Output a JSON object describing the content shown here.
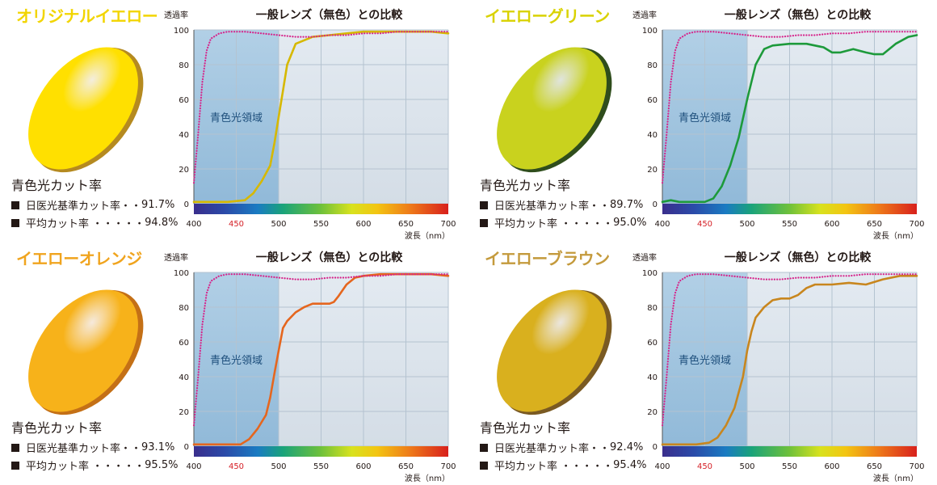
{
  "panels": [
    {
      "id": "original-yellow",
      "title": "オリジナルイエロー",
      "title_color": "#f2d500",
      "lens_color": "#ffe000",
      "lens_edge_color": "#b58a20",
      "cut_heading": "青色光カット率",
      "cut_rows": [
        {
          "label": "日医光基準カット率・・",
          "value": "91.7%"
        },
        {
          "label": "平均カット率 ・・・・・",
          "value": "94.8%"
        }
      ],
      "chart_data": {
        "type": "line",
        "title": "一般レンズ（無色）との比較",
        "ylabel": "透過率",
        "xlabel": "波長（nm）",
        "xlim": [
          400,
          700
        ],
        "ylim": [
          0,
          100
        ],
        "x_ticks": [
          "400",
          "450",
          "500",
          "550",
          "600",
          "650",
          "700"
        ],
        "y_ticks": [
          "0",
          "20",
          "40",
          "60",
          "80",
          "100"
        ],
        "highlight_tick": "450",
        "region_label": "青色光領域",
        "region_range": [
          400,
          500
        ],
        "series": [
          {
            "color": "#d6b800",
            "style": "solid",
            "x": [
              400,
              420,
              440,
              460,
              470,
              480,
              490,
              495,
              500,
              505,
              510,
              520,
              540,
              560,
              580,
              600,
              620,
              650,
              680,
              700
            ],
            "y": [
              1,
              1,
              1,
              2,
              6,
              13,
              22,
              35,
              50,
              65,
              80,
              92,
              96,
              97,
              98,
              99,
              99,
              99,
              99,
              98
            ]
          },
          {
            "color": "#d6248a",
            "style": "dotted",
            "x": [
              400,
              405,
              410,
              415,
              420,
              430,
              440,
              460,
              480,
              500,
              520,
              540,
              560,
              580,
              600,
              620,
              640,
              660,
              680,
              700
            ],
            "y": [
              12,
              40,
              70,
              88,
              95,
              98,
              99,
              99,
              98,
              97,
              96,
              96,
              97,
              97,
              98,
              98,
              99,
              99,
              99,
              99
            ]
          }
        ]
      }
    },
    {
      "id": "yellow-green",
      "title": "イエローグリーン",
      "title_color": "#d9d200",
      "lens_color": "#c9d21e",
      "lens_edge_color": "#2f4d1c",
      "cut_heading": "青色光カット率",
      "cut_rows": [
        {
          "label": "日医光基準カット率・・",
          "value": "89.7%"
        },
        {
          "label": "平均カット率 ・・・・・",
          "value": "95.0%"
        }
      ],
      "chart_data": {
        "type": "line",
        "title": "一般レンズ（無色）との比較",
        "ylabel": "透過率",
        "xlabel": "波長（nm）",
        "xlim": [
          400,
          700
        ],
        "ylim": [
          0,
          100
        ],
        "x_ticks": [
          "400",
          "450",
          "500",
          "550",
          "600",
          "650",
          "700"
        ],
        "y_ticks": [
          "0",
          "20",
          "40",
          "60",
          "80",
          "100"
        ],
        "highlight_tick": "450",
        "region_label": "青色光領域",
        "region_range": [
          400,
          500
        ],
        "series": [
          {
            "color": "#1d9a3b",
            "style": "solid",
            "x": [
              400,
              410,
              420,
              440,
              450,
              460,
              470,
              480,
              490,
              500,
              510,
              520,
              530,
              550,
              570,
              590,
              600,
              610,
              625,
              640,
              650,
              660,
              675,
              690,
              700
            ],
            "y": [
              1,
              2,
              1,
              1,
              1,
              3,
              10,
              22,
              38,
              60,
              80,
              89,
              91,
              92,
              92,
              90,
              87,
              87,
              89,
              87,
              86,
              86,
              92,
              96,
              97
            ]
          },
          {
            "color": "#d6248a",
            "style": "dotted",
            "x": [
              400,
              405,
              410,
              415,
              420,
              430,
              440,
              460,
              480,
              500,
              520,
              540,
              560,
              580,
              600,
              620,
              640,
              660,
              680,
              700
            ],
            "y": [
              12,
              40,
              70,
              88,
              95,
              98,
              99,
              99,
              98,
              97,
              96,
              96,
              97,
              97,
              98,
              98,
              99,
              99,
              99,
              99
            ]
          }
        ]
      }
    },
    {
      "id": "yellow-orange",
      "title": "イエローオレンジ",
      "title_color": "#f0a41e",
      "lens_color": "#f7b21a",
      "lens_edge_color": "#c47016",
      "cut_heading": "青色光カット率",
      "cut_rows": [
        {
          "label": "日医光基準カット率・・",
          "value": "93.1%"
        },
        {
          "label": "平均カット率 ・・・・・",
          "value": "95.5%"
        }
      ],
      "chart_data": {
        "type": "line",
        "title": "一般レンズ（無色）との比較",
        "ylabel": "透過率",
        "xlabel": "波長（nm）",
        "xlim": [
          400,
          700
        ],
        "ylim": [
          0,
          100
        ],
        "x_ticks": [
          "400",
          "450",
          "500",
          "550",
          "600",
          "650",
          "700"
        ],
        "y_ticks": [
          "0",
          "20",
          "40",
          "60",
          "80",
          "100"
        ],
        "highlight_tick": "450",
        "region_label": "青色光領域",
        "region_range": [
          400,
          500
        ],
        "series": [
          {
            "color": "#e5661e",
            "style": "solid",
            "x": [
              400,
              420,
              440,
              455,
              465,
              475,
              485,
              490,
              495,
              500,
              505,
              510,
              520,
              530,
              540,
              550,
              560,
              565,
              570,
              580,
              590,
              600,
              620,
              650,
              680,
              700
            ],
            "y": [
              1,
              1,
              1,
              1,
              4,
              10,
              18,
              28,
              42,
              55,
              68,
              72,
              77,
              80,
              82,
              82,
              82,
              83,
              86,
              93,
              97,
              98,
              99,
              99,
              99,
              98
            ]
          },
          {
            "color": "#d6248a",
            "style": "dotted",
            "x": [
              400,
              405,
              410,
              415,
              420,
              430,
              440,
              460,
              480,
              500,
              520,
              540,
              560,
              580,
              600,
              620,
              640,
              660,
              680,
              700
            ],
            "y": [
              12,
              40,
              70,
              88,
              95,
              98,
              99,
              99,
              98,
              97,
              96,
              96,
              97,
              97,
              98,
              98,
              99,
              99,
              99,
              99
            ]
          }
        ]
      }
    },
    {
      "id": "yellow-brown",
      "title": "イエローブラウン",
      "title_color": "#c49a3c",
      "lens_color": "#d9b01e",
      "lens_edge_color": "#7a5a22",
      "cut_heading": "青色光カット率",
      "cut_rows": [
        {
          "label": "日医光基準カット率・・",
          "value": "92.4%"
        },
        {
          "label": "平均カット率 ・・・・・",
          "value": "95.4%"
        }
      ],
      "chart_data": {
        "type": "line",
        "title": "一般レンズ（無色）との比較",
        "ylabel": "透過率",
        "xlabel": "波長（nm）",
        "xlim": [
          400,
          700
        ],
        "ylim": [
          0,
          100
        ],
        "x_ticks": [
          "400",
          "450",
          "500",
          "550",
          "600",
          "650",
          "700"
        ],
        "y_ticks": [
          "0",
          "20",
          "40",
          "60",
          "80",
          "100"
        ],
        "highlight_tick": "450",
        "region_label": "青色光領域",
        "region_range": [
          400,
          500
        ],
        "series": [
          {
            "color": "#c8861e",
            "style": "solid",
            "x": [
              400,
              420,
              440,
              455,
              465,
              475,
              485,
              495,
              500,
              505,
              510,
              520,
              530,
              540,
              550,
              560,
              570,
              580,
              590,
              600,
              620,
              640,
              660,
              680,
              700
            ],
            "y": [
              1,
              1,
              1,
              2,
              5,
              12,
              22,
              40,
              55,
              66,
              74,
              80,
              84,
              85,
              85,
              87,
              91,
              93,
              93,
              93,
              94,
              93,
              96,
              98,
              98
            ]
          },
          {
            "color": "#d6248a",
            "style": "dotted",
            "x": [
              400,
              405,
              410,
              415,
              420,
              430,
              440,
              460,
              480,
              500,
              520,
              540,
              560,
              580,
              600,
              620,
              640,
              660,
              680,
              700
            ],
            "y": [
              12,
              40,
              70,
              88,
              95,
              98,
              99,
              99,
              98,
              97,
              96,
              96,
              97,
              97,
              98,
              98,
              99,
              99,
              99,
              99
            ]
          }
        ]
      }
    }
  ]
}
